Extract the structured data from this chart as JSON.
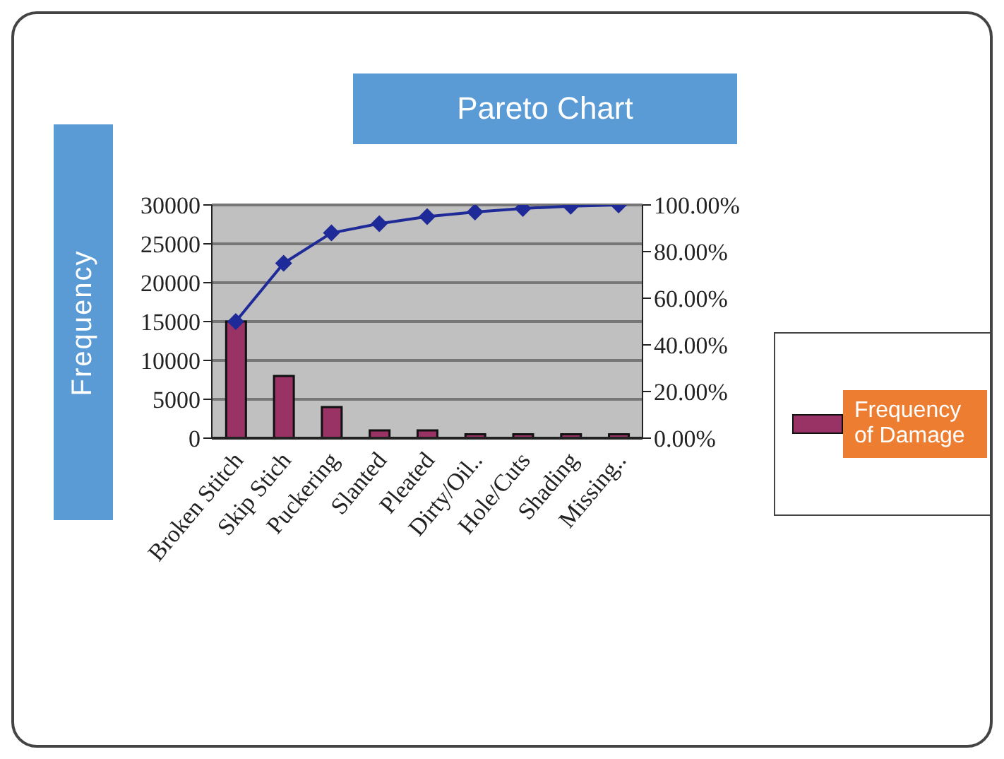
{
  "chart_data": {
    "type": "bar",
    "title": "Pareto Chart",
    "ylabel": "Frequency",
    "categories": [
      "Broken Stitch",
      "Skip Stich",
      "Puckering",
      "Slanted",
      "Pleated",
      "Dirty/Oil..",
      "Hole/Cuts",
      "Shading",
      "Missing.."
    ],
    "series": [
      {
        "name": "Frequency of Damage",
        "color": "#993366",
        "values": [
          15000,
          8000,
          4000,
          1000,
          1000,
          500,
          500,
          500,
          500
        ]
      },
      {
        "type": "line",
        "axis": "y2",
        "color": "#1f2a99",
        "marker": "diamond",
        "values": [
          50,
          75,
          88,
          92,
          95,
          97,
          98.5,
          99.5,
          100
        ]
      }
    ],
    "ylim": [
      0,
      30000
    ],
    "yticks": [
      0,
      5000,
      10000,
      15000,
      20000,
      25000,
      30000
    ],
    "y2lim": [
      0,
      100
    ],
    "y2ticks": [
      {
        "value": 0,
        "label": "0.00%"
      },
      {
        "value": 20,
        "label": "20.00%"
      },
      {
        "value": 40,
        "label": "40.00%"
      },
      {
        "value": 60,
        "label": "60.00%"
      },
      {
        "value": 80,
        "label": "80.00%"
      },
      {
        "value": 100,
        "label": "100.00%"
      }
    ],
    "grid": "y",
    "legend": "right"
  }
}
